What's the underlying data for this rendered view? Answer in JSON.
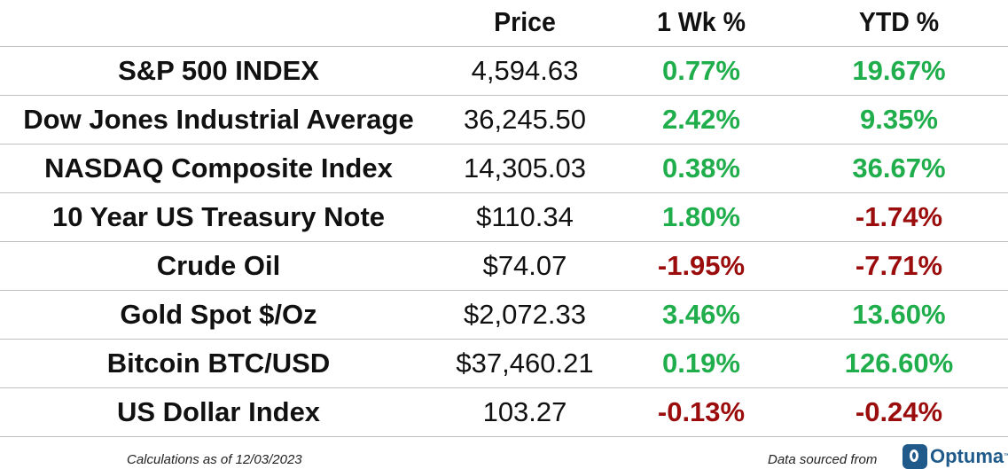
{
  "header": {
    "price": "Price",
    "week": "1 Wk %",
    "ytd": "YTD %"
  },
  "chart_data": {
    "type": "table",
    "columns": [
      "",
      "Price",
      "1 Wk %",
      "YTD %"
    ],
    "rows": [
      {
        "name": "S&P 500 INDEX",
        "price": "4,594.63",
        "wk": "0.77%",
        "ytd": "19.67%",
        "wk_dir": "pos",
        "ytd_dir": "pos"
      },
      {
        "name": "Dow Jones Industrial Average",
        "price": "36,245.50",
        "wk": "2.42%",
        "ytd": "9.35%",
        "wk_dir": "pos",
        "ytd_dir": "pos"
      },
      {
        "name": "NASDAQ Composite Index",
        "price": "14,305.03",
        "wk": "0.38%",
        "ytd": "36.67%",
        "wk_dir": "pos",
        "ytd_dir": "pos"
      },
      {
        "name": "10 Year US Treasury Note",
        "price": "$110.34",
        "wk": "1.80%",
        "ytd": "-1.74%",
        "wk_dir": "pos",
        "ytd_dir": "neg"
      },
      {
        "name": "Crude Oil",
        "price": "$74.07",
        "wk": "-1.95%",
        "ytd": "-7.71%",
        "wk_dir": "neg",
        "ytd_dir": "neg"
      },
      {
        "name": "Gold Spot $/Oz",
        "price": "$2,072.33",
        "wk": "3.46%",
        "ytd": "13.60%",
        "wk_dir": "pos",
        "ytd_dir": "pos"
      },
      {
        "name": "Bitcoin BTC/USD",
        "price": "$37,460.21",
        "wk": "0.19%",
        "ytd": "126.60%",
        "wk_dir": "pos",
        "ytd_dir": "pos"
      },
      {
        "name": "US Dollar Index",
        "price": "103.27",
        "wk": "-0.13%",
        "ytd": "-0.24%",
        "wk_dir": "neg",
        "ytd_dir": "neg"
      }
    ]
  },
  "footer": {
    "calculations": "Calculations as of 12/03/2023",
    "source": "Data sourced from",
    "logo_text": "Optuma",
    "logo_icon": "optuma-logo-icon"
  },
  "colors": {
    "positive": "#1fae4b",
    "negative": "#9b0d0d",
    "logo": "#1f5a8a"
  }
}
